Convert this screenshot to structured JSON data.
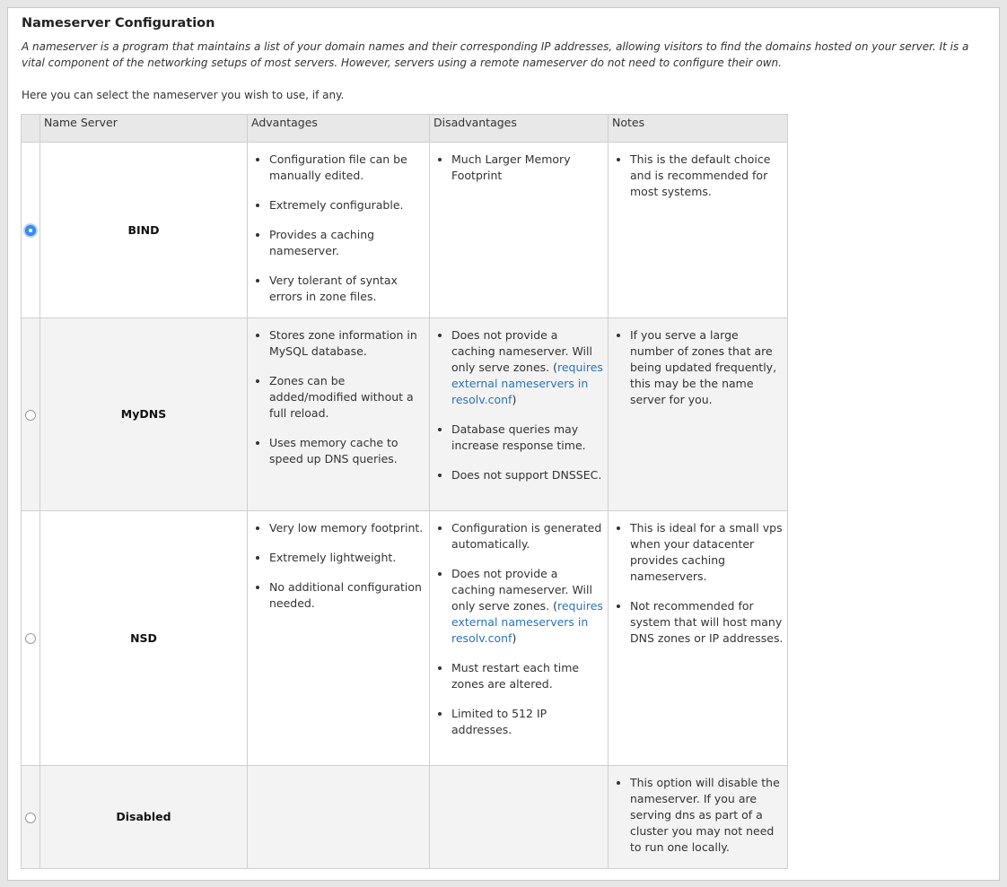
{
  "title": "Nameserver Configuration",
  "description": "A nameserver is a program that maintains a list of your domain names and their corresponding IP addresses, allowing visitors to find the domains hosted on your server. It is a vital component of the networking setups of most servers. However, servers using a remote nameserver do not need to configure their own.",
  "select_text": "Here you can select the nameserver you wish to use, if any.",
  "columns": [
    "Name Server",
    "Advantages",
    "Disadvantages",
    "Notes"
  ],
  "rows": [
    {
      "name": "BIND",
      "selected": true,
      "advantages": [
        "Configuration file can be manually edited.",
        "Extremely configurable.",
        "Provides a caching nameserver.",
        "Very tolerant of syntax errors in zone files."
      ],
      "disadvantages": [
        {
          "text": "Much Larger Memory Footprint"
        }
      ],
      "notes": [
        "This is the default choice and is recommended for most systems."
      ]
    },
    {
      "name": "MyDNS",
      "selected": false,
      "advantages": [
        "Stores zone information in MySQL database.",
        "Zones can be added/modified without a full reload.",
        "Uses memory cache to speed up DNS queries."
      ],
      "disadvantages": [
        {
          "text": "Does not provide a caching nameserver. Will only serve zones. (",
          "link": "requires external nameservers in resolv.conf",
          "after": ")"
        },
        {
          "text": "Database queries may increase response time."
        },
        {
          "text": "Does not support DNSSEC."
        }
      ],
      "notes": [
        "If you serve a large number of zones that are being updated frequently, this may be the name server for you."
      ]
    },
    {
      "name": "NSD",
      "selected": false,
      "advantages": [
        "Very low memory footprint.",
        "Extremely lightweight.",
        "No additional configuration needed."
      ],
      "disadvantages": [
        {
          "text": "Configuration is generated automatically."
        },
        {
          "text": "Does not provide a caching nameserver. Will only serve zones. (",
          "link": "requires external nameservers in resolv.conf",
          "after": ")"
        },
        {
          "text": "Must restart each time zones are altered."
        },
        {
          "text": "Limited to 512 IP addresses."
        }
      ],
      "notes": [
        "This is ideal for a small vps when your datacenter provides caching nameservers.",
        "Not recommended for system that will host many DNS zones or IP addresses."
      ]
    },
    {
      "name": "Disabled",
      "selected": false,
      "advantages": [],
      "disadvantages": [],
      "notes": [
        "This option will disable the nameserver. If you are serving dns as part of a cluster you may not need to run one locally."
      ]
    }
  ],
  "colors": {
    "link": "#2a74b8",
    "radio_selected": "#3b8ef0",
    "alt_row": "#f3f3f3",
    "header": "#e8e8e8"
  }
}
